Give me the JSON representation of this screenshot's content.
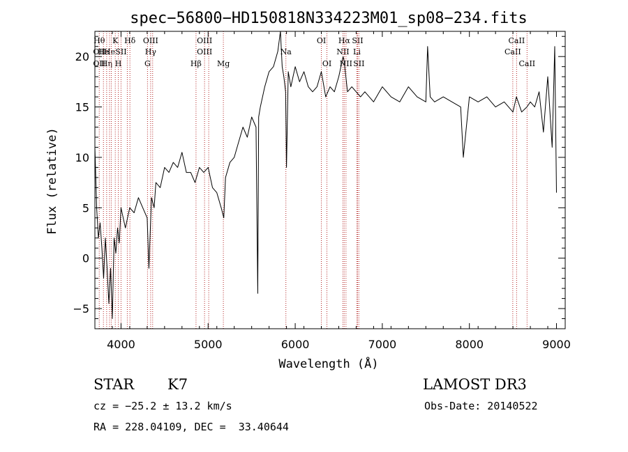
{
  "chart_data": {
    "type": "line",
    "title": "spec−56800−HD150818N334223M01_sp08−234.fits",
    "xlabel": "Wavelength (Å)",
    "ylabel": "Flux (relative)",
    "xlim": [
      3700,
      9100
    ],
    "ylim": [
      -7.0,
      22.5
    ],
    "xticks": [
      4000,
      5000,
      6000,
      7000,
      8000,
      9000
    ],
    "yticks": [
      -5,
      0,
      5,
      10,
      15,
      20
    ],
    "xtick_labels": [
      "4000",
      "5000",
      "6000",
      "7000",
      "8000",
      "9000"
    ],
    "ytick_labels": [
      "−5",
      "0",
      "5",
      "10",
      "15",
      "20"
    ],
    "grid": false,
    "series": [
      {
        "color": "#000000",
        "x": [
          3700,
          3720,
          3740,
          3760,
          3780,
          3800,
          3820,
          3840,
          3860,
          3880,
          3900,
          3920,
          3940,
          3960,
          3980,
          4000,
          4050,
          4100,
          4150,
          4200,
          4250,
          4300,
          4320,
          4350,
          4380,
          4400,
          4450,
          4500,
          4550,
          4600,
          4650,
          4700,
          4750,
          4800,
          4850,
          4900,
          4950,
          5000,
          5050,
          5100,
          5150,
          5180,
          5200,
          5250,
          5300,
          5350,
          5400,
          5450,
          5500,
          5550,
          5570,
          5580,
          5600,
          5650,
          5700,
          5750,
          5800,
          5830,
          5850,
          5870,
          5890,
          5900,
          5920,
          5950,
          6000,
          6050,
          6100,
          6150,
          6200,
          6250,
          6300,
          6350,
          6400,
          6450,
          6500,
          6550,
          6563,
          6600,
          6650,
          6700,
          6750,
          6800,
          6900,
          7000,
          7100,
          7200,
          7300,
          7400,
          7500,
          7520,
          7550,
          7600,
          7700,
          7800,
          7900,
          7930,
          8000,
          8100,
          8200,
          8300,
          8400,
          8500,
          8540,
          8600,
          8660,
          8700,
          8750,
          8800,
          8850,
          8900,
          8950,
          8980,
          9000
        ],
        "values": [
          11.0,
          5.0,
          2.0,
          3.5,
          1.0,
          -2.0,
          2.0,
          -1.0,
          -4.5,
          -1.0,
          -6.0,
          2.0,
          0.5,
          3.0,
          1.5,
          5.0,
          3.0,
          5.0,
          4.5,
          6.0,
          5.0,
          4.0,
          -1.0,
          6.0,
          5.0,
          7.5,
          7.0,
          9.0,
          8.5,
          9.5,
          9.0,
          10.5,
          8.5,
          8.5,
          7.5,
          9.0,
          8.5,
          9.0,
          7.0,
          6.5,
          5.0,
          4.0,
          8.0,
          9.5,
          10.0,
          11.5,
          13.0,
          12.0,
          14.0,
          13.0,
          -3.5,
          14.0,
          15.0,
          17.0,
          18.5,
          19.0,
          20.5,
          22.5,
          19.0,
          18.0,
          16.5,
          9.0,
          18.5,
          17.0,
          19.0,
          17.5,
          18.5,
          17.0,
          16.5,
          17.0,
          18.5,
          16.0,
          17.0,
          16.5,
          18.0,
          20.0,
          19.5,
          16.5,
          17.0,
          16.5,
          16.0,
          16.5,
          15.5,
          17.0,
          16.0,
          15.5,
          17.0,
          16.0,
          15.5,
          21.0,
          16.0,
          15.5,
          16.0,
          15.5,
          15.0,
          10.0,
          16.0,
          15.5,
          16.0,
          15.0,
          15.5,
          14.5,
          16.0,
          14.5,
          15.0,
          15.5,
          15.0,
          16.5,
          12.5,
          18.0,
          11.0,
          21.0,
          6.5
        ]
      }
    ],
    "line_markers": [
      {
        "x": 3750,
        "labels": [
          {
            "text": "Hθ",
            "row": 1
          },
          {
            "text": "OII",
            "row": 2
          },
          {
            "text": "OII",
            "row": 3
          }
        ]
      },
      {
        "x": 3798,
        "labels": [
          {
            "text": "He",
            "row": 2
          }
        ]
      },
      {
        "x": 3835,
        "labels": [
          {
            "text": "Hη",
            "row": 3
          }
        ]
      },
      {
        "x": 3868,
        "labels": [
          {
            "text": "He",
            "row": 2
          }
        ]
      },
      {
        "x": 3889,
        "labels": [
          {
            "text": "",
            "row": 0
          }
        ]
      },
      {
        "x": 3934,
        "labels": [
          {
            "text": "K",
            "row": 1
          }
        ]
      },
      {
        "x": 3969,
        "labels": [
          {
            "text": "H",
            "row": 3
          }
        ]
      },
      {
        "x": 4000,
        "labels": [
          {
            "text": "SII",
            "row": 2
          }
        ]
      },
      {
        "x": 4072,
        "labels": [
          {
            "text": "",
            "row": 0
          }
        ]
      },
      {
        "x": 4102,
        "labels": [
          {
            "text": "Hδ",
            "row": 1
          }
        ]
      },
      {
        "x": 4304,
        "labels": [
          {
            "text": "G",
            "row": 3
          }
        ]
      },
      {
        "x": 4340,
        "labels": [
          {
            "text": "OIII",
            "row": 1
          },
          {
            "text": "Hγ",
            "row": 2
          }
        ]
      },
      {
        "x": 4363,
        "labels": [
          {
            "text": "",
            "row": 0
          }
        ]
      },
      {
        "x": 4861,
        "labels": [
          {
            "text": "Hβ",
            "row": 3
          }
        ]
      },
      {
        "x": 4959,
        "labels": [
          {
            "text": "OIII",
            "row": 1
          },
          {
            "text": "OIII",
            "row": 2
          }
        ]
      },
      {
        "x": 5007,
        "labels": [
          {
            "text": "",
            "row": 0
          }
        ]
      },
      {
        "x": 5175,
        "labels": [
          {
            "text": "Mg",
            "row": 3
          }
        ]
      },
      {
        "x": 5893,
        "labels": [
          {
            "text": "Na",
            "row": 2
          }
        ]
      },
      {
        "x": 6300,
        "labels": [
          {
            "text": "OI",
            "row": 1
          }
        ]
      },
      {
        "x": 6364,
        "labels": [
          {
            "text": "OI",
            "row": 3
          }
        ]
      },
      {
        "x": 6548,
        "labels": [
          {
            "text": "NII",
            "row": 2
          }
        ]
      },
      {
        "x": 6563,
        "labels": [
          {
            "text": "Hα",
            "row": 1
          }
        ]
      },
      {
        "x": 6583,
        "labels": [
          {
            "text": "NII",
            "row": 3
          }
        ]
      },
      {
        "x": 6708,
        "labels": [
          {
            "text": "Li",
            "row": 2
          }
        ]
      },
      {
        "x": 6716,
        "labels": [
          {
            "text": "SII",
            "row": 1
          }
        ]
      },
      {
        "x": 6731,
        "labels": [
          {
            "text": "SII",
            "row": 3
          }
        ]
      },
      {
        "x": 8498,
        "labels": [
          {
            "text": "CaII",
            "row": 2
          }
        ]
      },
      {
        "x": 8542,
        "labels": [
          {
            "text": "CaII",
            "row": 1
          }
        ]
      },
      {
        "x": 8662,
        "labels": [
          {
            "text": "CaII",
            "row": 3
          }
        ]
      }
    ]
  },
  "info": {
    "object_class": "STAR",
    "subclass": "K7",
    "survey": "LAMOST DR3",
    "redshift": "cz = −25.2 ± 13.2 km/s",
    "obs_date": "Obs-Date: 20140522",
    "coords": "RA = 228.04109, DEC =  33.40644"
  }
}
